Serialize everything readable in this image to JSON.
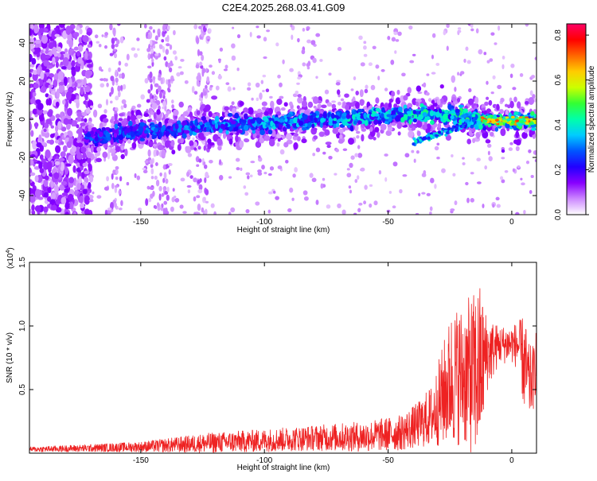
{
  "title": "C2E4.2025.268.03.41.G09",
  "chart_data": [
    {
      "type": "heatmap",
      "name": "spectrogram",
      "xlabel": "Height of straight line (km)",
      "ylabel": "Frequency (Hz)",
      "xlim": [
        -195,
        10
      ],
      "ylim": [
        -50,
        50
      ],
      "xticks": [
        -150,
        -100,
        -50,
        0
      ],
      "yticks": [
        -40,
        -20,
        0,
        20,
        40
      ],
      "colorbar": {
        "label": "Normalized spectral amplitude",
        "range": [
          0,
          0.85
        ],
        "ticks": [
          "0.0",
          "0.2",
          "0.4",
          "0.6",
          "0.8"
        ],
        "colors": [
          "#ffffff",
          "#cc88ff",
          "#8800ff",
          "#2200ff",
          "#0055ff",
          "#00ccff",
          "#00ffaa",
          "#33ff33",
          "#ccff00",
          "#ffcc00",
          "#ff6600",
          "#ff0000",
          "#ff0066"
        ]
      },
      "ridge": {
        "description": "signal band rising from about -10 Hz at -170 km to 0 Hz at 10 km",
        "points": [
          [
            -172,
            -10
          ],
          [
            -150,
            -6
          ],
          [
            -125,
            -4
          ],
          [
            -100,
            -2
          ],
          [
            -75,
            0
          ],
          [
            -50,
            2
          ],
          [
            -30,
            3
          ],
          [
            -15,
            0
          ],
          [
            0,
            -1
          ],
          [
            10,
            -1
          ]
        ]
      },
      "secondary_branch": [
        [
          -40,
          -12
        ],
        [
          -28,
          -7
        ],
        [
          -15,
          -2
        ]
      ]
    },
    {
      "type": "line",
      "name": "snr",
      "xlabel": "Height of straight line (km)",
      "ylabel": "SNR (10 * v/v)",
      "multiplier": "(x10",
      "multiplier_exp": "4",
      "xlim": [
        -195,
        10
      ],
      "ylim": [
        0,
        1.5
      ],
      "xticks": [
        -150,
        -100,
        -50,
        0
      ],
      "yticks": [
        "0.5",
        "1.0",
        "1.5"
      ],
      "color": "#ee2222",
      "envelope": {
        "x": [
          -195,
          -170,
          -150,
          -122,
          -100,
          -80,
          -60,
          -45,
          -38,
          -32,
          -28,
          -24,
          -20,
          -16,
          -13,
          -10,
          -5,
          0,
          3,
          5,
          7,
          9,
          10
        ],
        "mean": [
          0.03,
          0.04,
          0.05,
          0.08,
          0.1,
          0.12,
          0.13,
          0.16,
          0.22,
          0.3,
          0.45,
          0.6,
          0.62,
          0.6,
          0.65,
          0.78,
          0.85,
          0.86,
          0.84,
          0.7,
          0.55,
          0.6,
          0.8
        ],
        "amp": [
          0.02,
          0.03,
          0.04,
          0.08,
          0.09,
          0.1,
          0.12,
          0.14,
          0.18,
          0.25,
          0.4,
          0.55,
          0.55,
          0.65,
          0.7,
          0.3,
          0.15,
          0.15,
          0.2,
          0.4,
          0.3,
          0.25,
          0.25
        ]
      }
    }
  ]
}
